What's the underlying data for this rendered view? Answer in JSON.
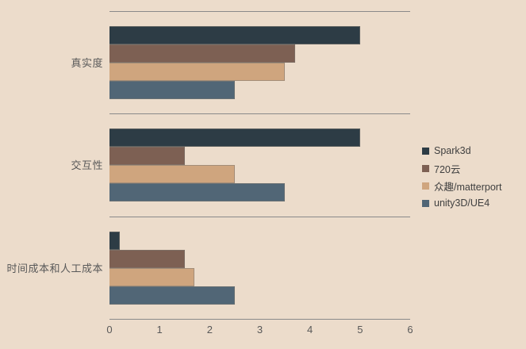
{
  "chart_data": {
    "type": "bar",
    "orientation": "horizontal",
    "title": "",
    "xlabel": "",
    "ylabel": "",
    "categories": [
      "真实度",
      "交互性",
      "时间成本和人工成本"
    ],
    "series": [
      {
        "name": "Spark3d",
        "color": "#2d3c45",
        "values": [
          5.0,
          5.0,
          0.2
        ]
      },
      {
        "name": "720云",
        "color": "#7d6053",
        "values": [
          3.7,
          1.5,
          1.5
        ]
      },
      {
        "name": "众趣/matterport",
        "color": "#cfa57e",
        "values": [
          3.5,
          2.5,
          1.7
        ]
      },
      {
        "name": "unity3D/UE4",
        "color": "#516676",
        "values": [
          2.5,
          3.5,
          2.5
        ]
      }
    ],
    "xlim": [
      0,
      6
    ],
    "x_ticks": [
      "0",
      "1",
      "2",
      "3",
      "4",
      "5",
      "6"
    ],
    "legend_position": "right",
    "grid": "category-separator-lines"
  },
  "colors": {
    "background": "#ecdccb",
    "gridline": "#8a8a8a",
    "bar_border": "rgba(128,122,114,0.55)",
    "axis_text": "#595959",
    "category_text": "#595959",
    "legend_text": "#404040"
  }
}
